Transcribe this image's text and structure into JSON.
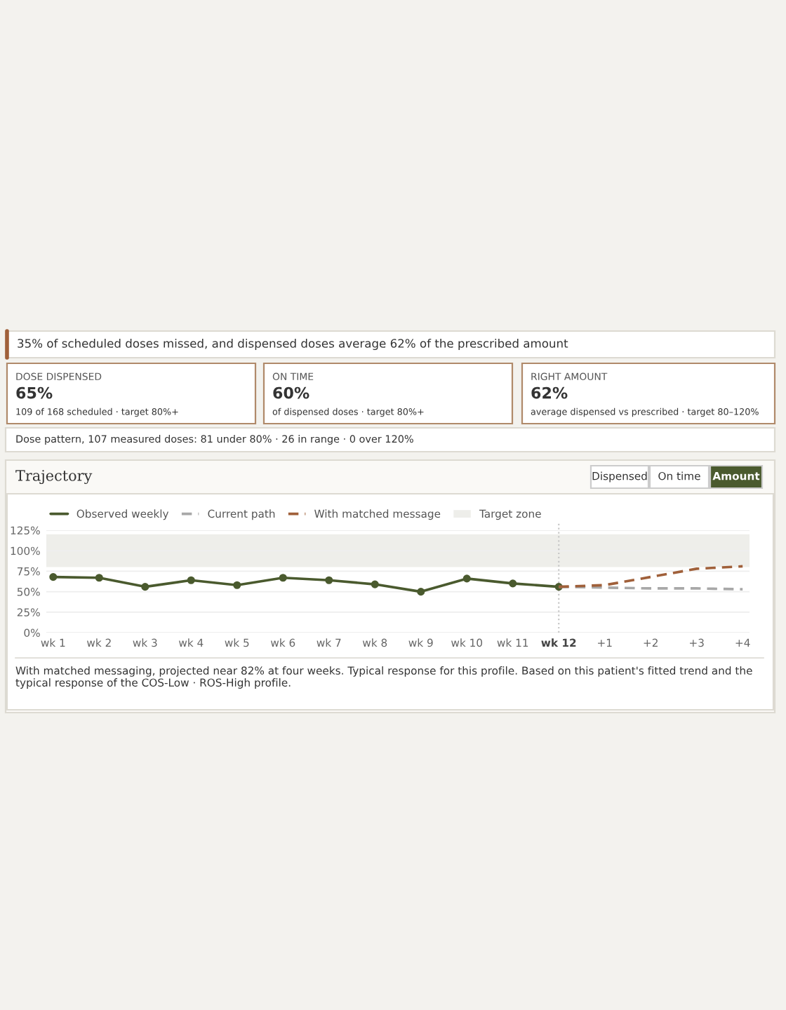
{
  "chart_data": {
    "type": "line",
    "title": "Trajectory",
    "annotations": [
      "35% of scheduled doses missed, and dispensed doses average 62% of the prescribed amount",
      "DOSE DISPENSED",
      "65%",
      "109 of 168 scheduled · target 80%+",
      "ON TIME",
      "60%",
      "of dispensed doses · target 80%+",
      "RIGHT AMOUNT",
      "62%",
      "average dispensed vs prescribed · target 80–120%",
      "Dose pattern, 107 measured doses: 81 under 80% · 26 in range · 0 over 120%",
      "Dispensed",
      "On time",
      "Amount",
      "With matched messaging, projected near 82% at four weeks. Typical response for this profile. Based on this patient's fitted trend and the typical response of the COS-Low · ROS-High profile."
    ],
    "categories": [
      "wk 1",
      "wk 2",
      "wk 3",
      "wk 4",
      "wk 5",
      "wk 6",
      "wk 7",
      "wk 8",
      "wk 9",
      "wk 10",
      "wk 11",
      "wk 12",
      "+1",
      "+2",
      "+3",
      "+4"
    ],
    "series": [
      {
        "name": "Observed weekly",
        "color": "#4a5a2e",
        "line_style": "solid",
        "marker": "circle",
        "values": [
          68,
          67,
          56,
          64,
          58,
          67,
          64,
          59,
          50,
          66,
          60,
          56,
          null,
          null,
          null,
          null
        ]
      },
      {
        "name": "Current path",
        "color": "#a8a8a8",
        "line_style": "dashed",
        "marker": "none",
        "values": [
          null,
          null,
          null,
          null,
          null,
          null,
          null,
          null,
          null,
          null,
          null,
          56,
          55,
          54,
          54,
          53
        ]
      },
      {
        "name": "With matched message",
        "color": "#a0603a",
        "line_style": "dashed",
        "marker": "none",
        "values": [
          null,
          null,
          null,
          null,
          null,
          null,
          null,
          null,
          null,
          null,
          null,
          56,
          58,
          68,
          78,
          81
        ]
      }
    ],
    "ylim": [
      0,
      125
    ],
    "yticks": [
      {
        "value": 0,
        "label": "0%"
      },
      {
        "value": 25,
        "label": "25%"
      },
      {
        "value": 50,
        "label": "50%"
      },
      {
        "value": 75,
        "label": "75%"
      },
      {
        "value": 100,
        "label": "100%"
      },
      {
        "value": 125,
        "label": "125%"
      }
    ],
    "bands": [
      {
        "axis": "y",
        "from": 80,
        "to": 120,
        "label": "Target zone",
        "color": "#eeeeea"
      }
    ],
    "ref_lines": [
      {
        "axis": "x",
        "value": "wk 12",
        "color": "#c8c8c8",
        "line_style": "dotted"
      }
    ],
    "grid": "y",
    "legend": "top left"
  }
}
